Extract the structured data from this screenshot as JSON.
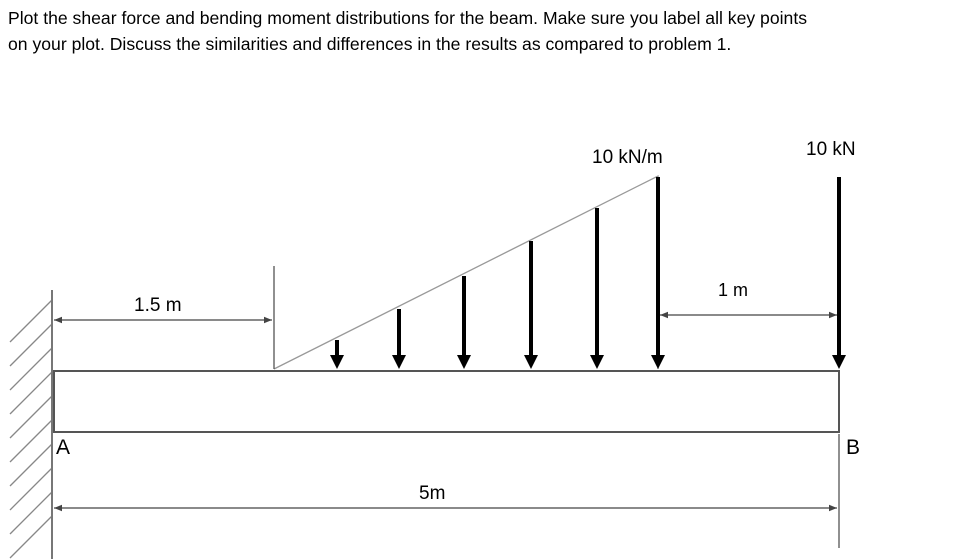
{
  "problem": {
    "line1": "Plot the shear force and bending moment distributions for the beam.  Make sure you label all key points",
    "line2": "on your plot.  Discuss the similarities and differences in the results as compared to problem 1."
  },
  "diagram": {
    "dist_load_label": "10 kN/m",
    "point_load_label": "10 kN",
    "dim_start_label": "1.5 m",
    "dim_end_label": "1 m",
    "dim_total_label": "5m",
    "point_a_label": "A",
    "point_b_label": "B",
    "colors": {
      "ink": "#000000",
      "beam_outline": "#555555",
      "dim_line": "#444444",
      "load_line": "#999999"
    }
  }
}
